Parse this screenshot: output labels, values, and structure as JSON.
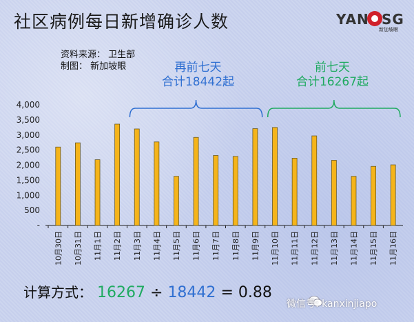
{
  "title": "社区病例每日新增确诊人数",
  "logo": {
    "text_left": "YAN",
    "text_right": "SG",
    "subtitle": "新加坡眼"
  },
  "source": "资料来源：  卫生部",
  "made_by": "制图：  新加坡眼",
  "groups": [
    {
      "line1": "再前七天",
      "line2": "合计18442起",
      "color": "#2f6fd1"
    },
    {
      "line1": "前七天",
      "line2": "合计16267起",
      "color": "#1faa60"
    }
  ],
  "formula": {
    "label": "计算方式：",
    "numerator": "16267",
    "op": "÷",
    "denominator": "18442",
    "equals": "= 0.88"
  },
  "wechat": "微信号: kanxinjiapo",
  "colors": {
    "bar": "#f5b41a",
    "bar_edge": "#6b5a20",
    "axis": "#222222"
  },
  "chart_data": {
    "type": "bar",
    "categories": [
      "10月30日",
      "10月31日",
      "11月1日",
      "11月2日",
      "11月3日",
      "11月4日",
      "11月5日",
      "11月6日",
      "11月7日",
      "11月8日",
      "11月9日",
      "11月10日",
      "11月11日",
      "11月12日",
      "11月13日",
      "11月14日",
      "11月15日",
      "11月16日"
    ],
    "values": [
      2600,
      2740,
      2180,
      3360,
      3200,
      2770,
      1630,
      2920,
      2320,
      2290,
      3210,
      3250,
      2230,
      2970,
      2160,
      1630,
      1960,
      2010
    ],
    "yticks": [
      "-",
      "500",
      "1,000",
      "1,500",
      "2,000",
      "2,500",
      "3,000",
      "3,500",
      "4,000"
    ],
    "ylim": [
      0,
      4000
    ],
    "legend": "none"
  }
}
